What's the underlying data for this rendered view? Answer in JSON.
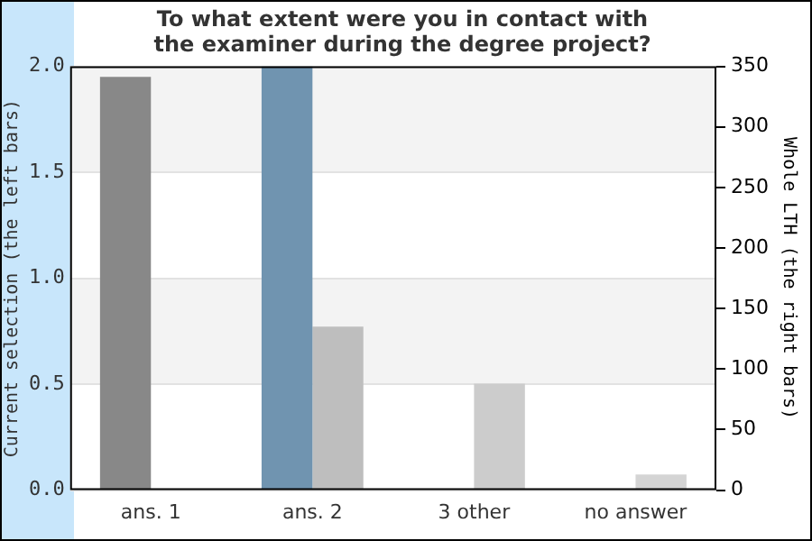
{
  "chart_data": {
    "type": "bar",
    "title": "To what extent were you in contact with\nthe examiner during the degree project?",
    "ylabel": "Current selection (the left bars)",
    "y2label": "Whole LTH (the right bars)",
    "categories": [
      "ans. 1",
      "ans. 2",
      "3 other",
      "no answer"
    ],
    "series": [
      {
        "colors": [
          "#888888",
          "#7094b0",
          "#888888",
          "#888888"
        ],
        "values": [
          1.95,
          2.0,
          0,
          0
        ]
      },
      {
        "colors": [
          "#bebebe",
          "#bebebe",
          "#cccccc",
          "#d4d4d4"
        ],
        "values": [
          0,
          135,
          88,
          13
        ],
        "axis": "y2"
      }
    ],
    "ylim": [
      0,
      2.0
    ],
    "yticks": [
      {
        "value": 0,
        "label": "0.0"
      },
      {
        "value": 0.5,
        "label": "0.5"
      },
      {
        "value": 1,
        "label": "1.0"
      },
      {
        "value": 1.5,
        "label": "1.5"
      },
      {
        "value": 2,
        "label": "2.0"
      }
    ],
    "y2lim": [
      0,
      350
    ],
    "y2ticks": [
      0,
      50,
      100,
      150,
      200,
      250,
      300,
      350
    ],
    "grid": "y",
    "legend": false
  }
}
